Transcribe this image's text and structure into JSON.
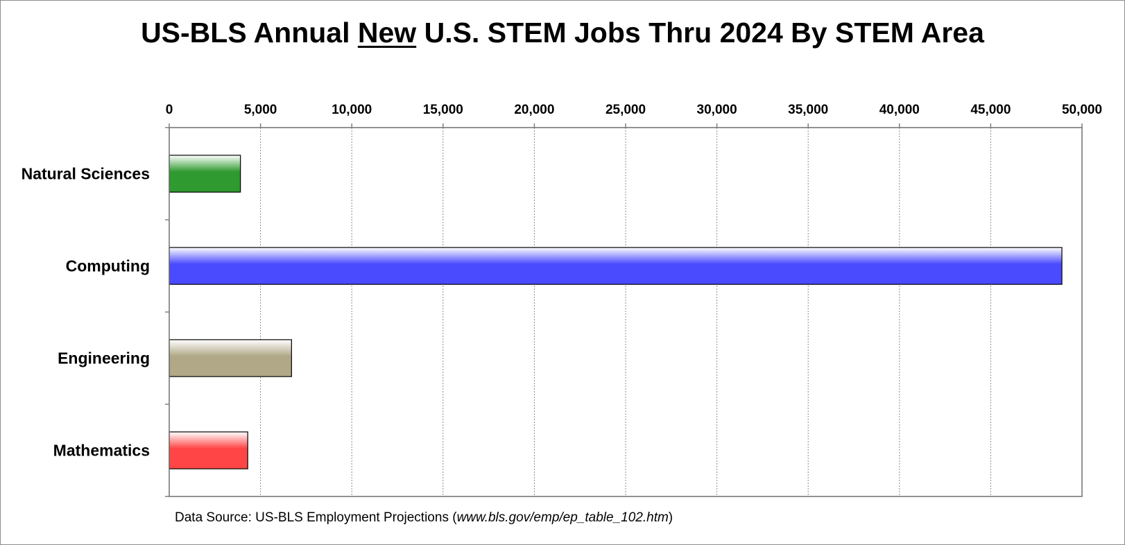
{
  "title": {
    "before": "US-BLS Annual ",
    "emphasis": "New",
    "after": " U.S. STEM Jobs Thru 2024 By STEM Area"
  },
  "source": {
    "prefix": "Data Source: US-BLS Employment Projections (",
    "url": "www.bls.gov/emp/ep_table_102.htm",
    "suffix": ")"
  },
  "chart_data": {
    "type": "bar",
    "orientation": "horizontal",
    "title": "US-BLS Annual New U.S. STEM Jobs Thru 2024 By STEM Area",
    "categories": [
      "Natural Sciences",
      "Computing",
      "Engineering",
      "Mathematics"
    ],
    "values": [
      3900,
      48900,
      6700,
      4300
    ],
    "colors": [
      "#2f9a2f",
      "#4a4aff",
      "#b0a886",
      "#ff4545"
    ],
    "xlim": [
      0,
      50000
    ],
    "x_ticks": [
      0,
      5000,
      10000,
      15000,
      20000,
      25000,
      30000,
      35000,
      40000,
      45000,
      50000
    ],
    "x_tick_labels": [
      "0",
      "5,000",
      "10,000",
      "15,000",
      "20,000",
      "25,000",
      "30,000",
      "35,000",
      "40,000",
      "45,000",
      "50,000"
    ],
    "x_axis_position": "top",
    "grid": "vertical dotted",
    "legend": "none"
  }
}
